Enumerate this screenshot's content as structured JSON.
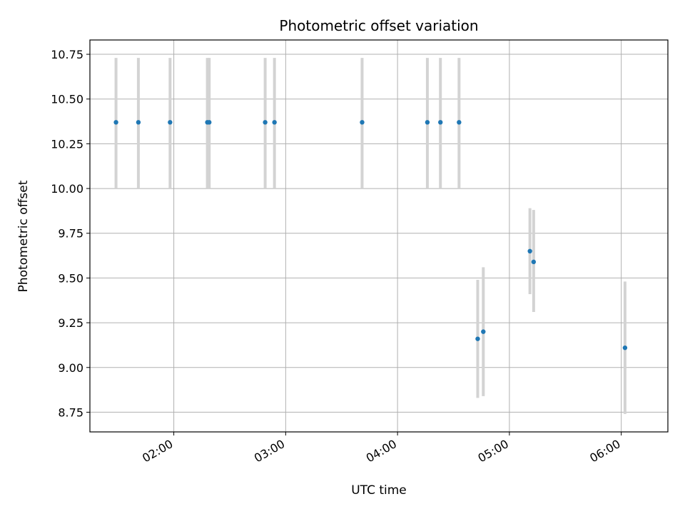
{
  "chart_data": {
    "type": "scatter",
    "title": "Photometric offset variation",
    "xlabel": "UTC time",
    "ylabel": "Photometric offset",
    "x_axis_kind": "time",
    "xlim": [
      "01:15",
      "06:25"
    ],
    "ylim": [
      8.64,
      10.83
    ],
    "grid": true,
    "x_ticks": [
      "02:00",
      "03:00",
      "04:00",
      "05:00",
      "06:00"
    ],
    "y_ticks": [
      8.75,
      9.0,
      9.25,
      9.5,
      9.75,
      10.0,
      10.25,
      10.5,
      10.75
    ],
    "y_tick_labels": [
      "8.75",
      "9.00",
      "9.25",
      "9.50",
      "9.75",
      "10.00",
      "10.25",
      "10.50",
      "10.75"
    ],
    "point_color": "#1f77b4",
    "errorbar_color": "#d3d3d3",
    "points": [
      {
        "time": "01:29",
        "y": 10.37,
        "err_low": 10.0,
        "err_high": 10.73
      },
      {
        "time": "01:41",
        "y": 10.37,
        "err_low": 10.0,
        "err_high": 10.73
      },
      {
        "time": "01:58",
        "y": 10.37,
        "err_low": 10.0,
        "err_high": 10.73
      },
      {
        "time": "02:18",
        "y": 10.37,
        "err_low": 10.0,
        "err_high": 10.73
      },
      {
        "time": "02:19",
        "y": 10.37,
        "err_low": 10.0,
        "err_high": 10.73
      },
      {
        "time": "02:49",
        "y": 10.37,
        "err_low": 10.0,
        "err_high": 10.73
      },
      {
        "time": "02:54",
        "y": 10.37,
        "err_low": 10.0,
        "err_high": 10.73
      },
      {
        "time": "03:41",
        "y": 10.37,
        "err_low": 10.0,
        "err_high": 10.73
      },
      {
        "time": "04:16",
        "y": 10.37,
        "err_low": 10.0,
        "err_high": 10.73
      },
      {
        "time": "04:23",
        "y": 10.37,
        "err_low": 10.0,
        "err_high": 10.73
      },
      {
        "time": "04:33",
        "y": 10.37,
        "err_low": 10.0,
        "err_high": 10.73
      },
      {
        "time": "04:43",
        "y": 9.16,
        "err_low": 8.83,
        "err_high": 9.49
      },
      {
        "time": "04:46",
        "y": 9.2,
        "err_low": 8.84,
        "err_high": 9.56
      },
      {
        "time": "05:11",
        "y": 9.65,
        "err_low": 9.41,
        "err_high": 9.89
      },
      {
        "time": "05:13",
        "y": 9.59,
        "err_low": 9.31,
        "err_high": 9.88
      },
      {
        "time": "06:02",
        "y": 9.11,
        "err_low": 8.74,
        "err_high": 9.48
      }
    ]
  }
}
